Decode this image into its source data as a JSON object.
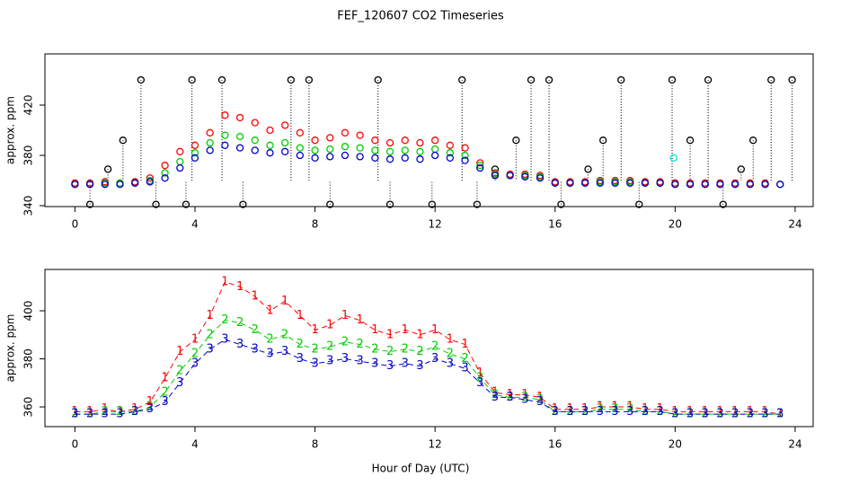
{
  "chart_data": [
    {
      "type": "scatter",
      "title": "FEF_120607  CO2 Timeseries",
      "ylabel": "approx. ppm",
      "xlim": [
        -1,
        24.6
      ],
      "ylim": [
        339.3,
        460.7
      ],
      "xticks": [
        0,
        4,
        8,
        12,
        16,
        20,
        24
      ],
      "yticks": [
        340,
        380,
        420
      ],
      "series": [
        {
          "color": "#000000",
          "drop": true,
          "x": [
            0.5,
            1.1,
            1.6,
            2.2,
            2.7,
            3.7,
            3.9,
            4.9,
            5.6,
            7.2,
            7.8,
            8.5,
            10.1,
            10.5,
            11.9,
            12.9,
            13.4,
            14,
            14.7,
            15.2,
            15.8,
            16.2,
            17.1,
            17.6,
            18.2,
            18.8,
            19.9,
            20.5,
            21.1,
            21.6,
            22.2,
            22.6,
            23.2,
            23.9
          ],
          "values": [
            341,
            369,
            392,
            440,
            341,
            341,
            440,
            440,
            341,
            440,
            440,
            341,
            440,
            341,
            341,
            440,
            341,
            369,
            392,
            440,
            440,
            341,
            369,
            392,
            440,
            341,
            440,
            392,
            440,
            341,
            369,
            392,
            440,
            440
          ]
        },
        {
          "color": "#ff0000",
          "x": [
            0,
            0.5,
            1,
            1.5,
            2,
            2.5,
            3,
            3.5,
            4,
            4.5,
            5,
            5.5,
            6,
            6.5,
            7,
            7.5,
            8,
            8.5,
            9,
            9.5,
            10,
            10.5,
            11,
            11.5,
            12,
            12.5,
            13,
            13.5,
            14,
            14.5,
            15,
            15.5,
            16,
            16.5,
            17,
            17.5,
            18,
            18.5,
            19,
            19.5,
            20,
            20.5,
            21,
            21.5,
            22,
            22.5,
            23,
            23.5
          ],
          "values": [
            358,
            358,
            359,
            358,
            359,
            362,
            372,
            383,
            388,
            398,
            412,
            410,
            406,
            400,
            404,
            398,
            392,
            394,
            398,
            396,
            392,
            390,
            392,
            390,
            392,
            388,
            386,
            374,
            366,
            365,
            365,
            364,
            359,
            359,
            359,
            360,
            360,
            360,
            359,
            359,
            358,
            358,
            358,
            358,
            358,
            358,
            358,
            357
          ]
        },
        {
          "color": "#00cc00",
          "x": [
            0,
            0.5,
            1,
            1.5,
            2,
            2.5,
            3,
            3.5,
            4,
            4.5,
            5,
            5.5,
            6,
            6.5,
            7,
            7.5,
            8,
            8.5,
            9,
            9.5,
            10,
            10.5,
            11,
            11.5,
            12,
            12.5,
            13,
            13.5,
            14,
            14.5,
            15,
            15.5,
            16,
            16.5,
            17,
            17.5,
            18,
            18.5,
            19,
            19.5,
            20,
            20.5,
            21,
            21.5,
            22,
            22.5,
            23,
            23.5
          ],
          "values": [
            357,
            357,
            358,
            358,
            358,
            360,
            366,
            375,
            382,
            390,
            396,
            395,
            392,
            388,
            390,
            386,
            384,
            385,
            387,
            386,
            384,
            383,
            384,
            383,
            385,
            382,
            380,
            372,
            365,
            364,
            364,
            363,
            358,
            358,
            358,
            359,
            359,
            359,
            358,
            358,
            357,
            357,
            357,
            357,
            357,
            357,
            357,
            357
          ]
        },
        {
          "color": "#0000cc",
          "x": [
            0,
            0.5,
            1,
            1.5,
            2,
            2.5,
            3,
            3.5,
            4,
            4.5,
            5,
            5.5,
            6,
            6.5,
            7,
            7.5,
            8,
            8.5,
            9,
            9.5,
            10,
            10.5,
            11,
            11.5,
            12,
            12.5,
            13,
            13.5,
            14,
            14.5,
            15,
            15.5,
            16,
            16.5,
            17,
            17.5,
            18,
            18.5,
            19,
            19.5,
            20,
            20.5,
            21,
            21.5,
            22,
            22.5,
            23,
            23.5
          ],
          "values": [
            357,
            357,
            357,
            357,
            358,
            359,
            362,
            370,
            378,
            384,
            388,
            386,
            384,
            382,
            383,
            380,
            378,
            379,
            380,
            379,
            378,
            377,
            378,
            377,
            380,
            378,
            376,
            370,
            364,
            364,
            363,
            362,
            358,
            358,
            358,
            358,
            358,
            358,
            358,
            358,
            357,
            357,
            357,
            357,
            357,
            357,
            357,
            357
          ]
        },
        {
          "color": "#00e5e5",
          "x": [
            19.95
          ],
          "values": [
            378
          ]
        }
      ]
    },
    {
      "type": "line",
      "xlabel": "Hour of Day (UTC)",
      "ylabel": "approx. ppm",
      "xlim": [
        -1,
        24.6
      ],
      "ylim": [
        351.8,
        417.2
      ],
      "xticks": [
        0,
        4,
        8,
        12,
        16,
        20,
        24
      ],
      "yticks": [
        360,
        380,
        400
      ],
      "series": [
        {
          "color": "#ff0000",
          "marker": "1",
          "x": [
            0,
            0.5,
            1,
            1.5,
            2,
            2.5,
            3,
            3.5,
            4,
            4.5,
            5,
            5.5,
            6,
            6.5,
            7,
            7.5,
            8,
            8.5,
            9,
            9.5,
            10,
            10.5,
            11,
            11.5,
            12,
            12.5,
            13,
            13.5,
            14,
            14.5,
            15,
            15.5,
            16,
            16.5,
            17,
            17.5,
            18,
            18.5,
            19,
            19.5,
            20,
            20.5,
            21,
            21.5,
            22,
            22.5,
            23,
            23.5
          ],
          "values": [
            358,
            358,
            359,
            358,
            359,
            362,
            372,
            383,
            388,
            398,
            412,
            410,
            406,
            400,
            404,
            398,
            392,
            394,
            398,
            396,
            392,
            390,
            392,
            390,
            392,
            388,
            386,
            374,
            366,
            365,
            365,
            364,
            359,
            359,
            359,
            360,
            360,
            360,
            359,
            359,
            358,
            358,
            358,
            358,
            358,
            358,
            358,
            357
          ]
        },
        {
          "color": "#00cc00",
          "marker": "2",
          "x": [
            0,
            0.5,
            1,
            1.5,
            2,
            2.5,
            3,
            3.5,
            4,
            4.5,
            5,
            5.5,
            6,
            6.5,
            7,
            7.5,
            8,
            8.5,
            9,
            9.5,
            10,
            10.5,
            11,
            11.5,
            12,
            12.5,
            13,
            13.5,
            14,
            14.5,
            15,
            15.5,
            16,
            16.5,
            17,
            17.5,
            18,
            18.5,
            19,
            19.5,
            20,
            20.5,
            21,
            21.5,
            22,
            22.5,
            23,
            23.5
          ],
          "values": [
            357,
            357,
            358,
            358,
            358,
            360,
            366,
            375,
            382,
            390,
            396,
            395,
            392,
            388,
            390,
            386,
            384,
            385,
            387,
            386,
            384,
            383,
            384,
            383,
            385,
            382,
            380,
            372,
            365,
            364,
            364,
            363,
            358,
            358,
            358,
            359,
            359,
            359,
            358,
            358,
            357,
            357,
            357,
            357,
            357,
            357,
            357,
            357
          ]
        },
        {
          "color": "#0000cc",
          "marker": "3",
          "x": [
            0,
            0.5,
            1,
            1.5,
            2,
            2.5,
            3,
            3.5,
            4,
            4.5,
            5,
            5.5,
            6,
            6.5,
            7,
            7.5,
            8,
            8.5,
            9,
            9.5,
            10,
            10.5,
            11,
            11.5,
            12,
            12.5,
            13,
            13.5,
            14,
            14.5,
            15,
            15.5,
            16,
            16.5,
            17,
            17.5,
            18,
            18.5,
            19,
            19.5,
            20,
            20.5,
            21,
            21.5,
            22,
            22.5,
            23,
            23.5
          ],
          "values": [
            357,
            357,
            357,
            357,
            358,
            359,
            362,
            370,
            378,
            384,
            388,
            386,
            384,
            382,
            383,
            380,
            378,
            379,
            380,
            379,
            378,
            377,
            378,
            377,
            380,
            378,
            376,
            370,
            364,
            364,
            363,
            362,
            358,
            358,
            358,
            358,
            358,
            358,
            358,
            358,
            357,
            357,
            357,
            357,
            357,
            357,
            357,
            357
          ]
        }
      ]
    }
  ]
}
